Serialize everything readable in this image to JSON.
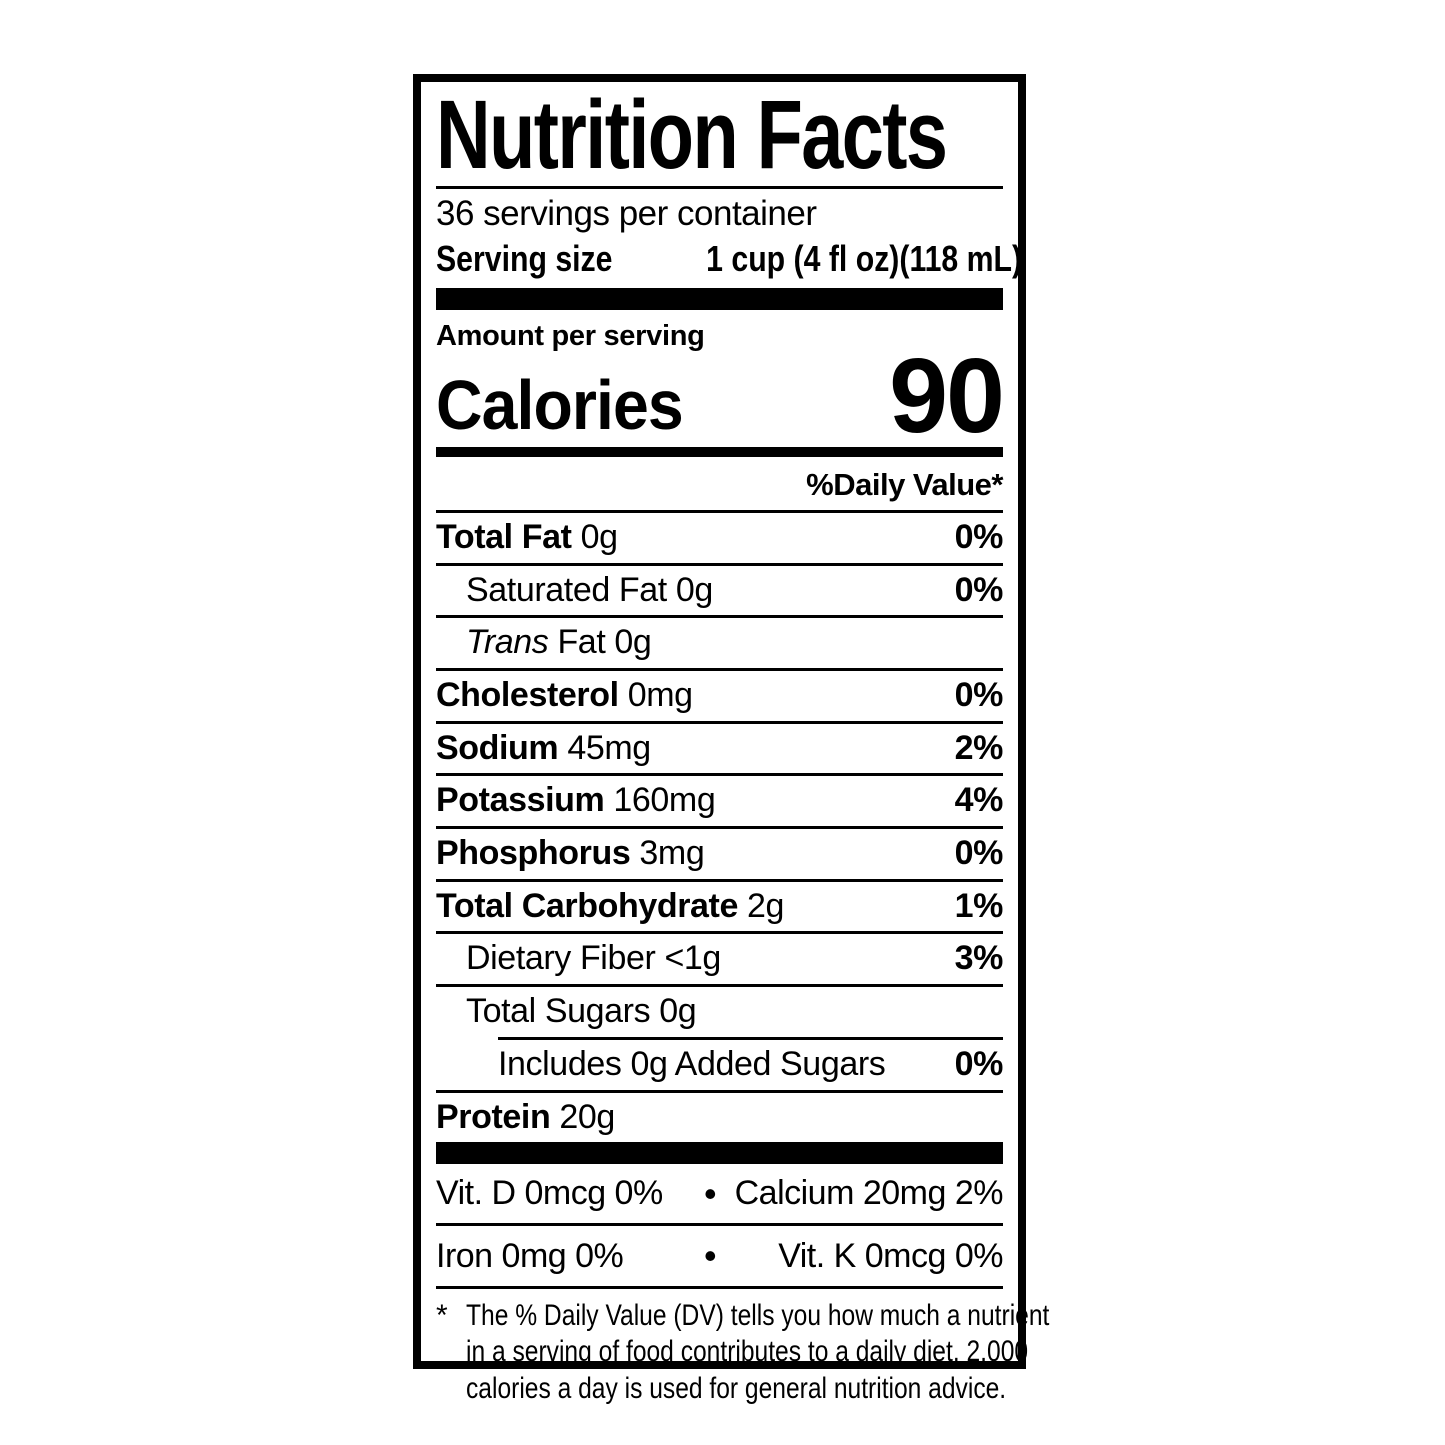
{
  "label": {
    "title": "Nutrition Facts",
    "servings_per_container": "36 servings per container",
    "serving_size_label": "Serving size",
    "serving_size_value": "1 cup (4 fl oz)(118 mL)",
    "amount_per_serving": "Amount per serving",
    "calories_label": "Calories",
    "calories_value": "90",
    "daily_value_header": "%Daily Value*",
    "rows": [
      {
        "name": "Total Fat",
        "amount": "0g",
        "dv": "0%"
      },
      {
        "name": "Saturated Fat",
        "amount": "0g",
        "dv": "0%"
      },
      {
        "name_italic": "Trans",
        "name": "Fat",
        "amount": "0g",
        "dv": ""
      },
      {
        "name": "Cholesterol",
        "amount": "0mg",
        "dv": "0%"
      },
      {
        "name": "Sodium",
        "amount": "45mg",
        "dv": "2%"
      },
      {
        "name": "Potassium",
        "amount": "160mg",
        "dv": "4%"
      },
      {
        "name": "Phosphorus",
        "amount": "3mg",
        "dv": "0%"
      },
      {
        "name": "Total Carbohydrate",
        "amount": "2g",
        "dv": "1%"
      },
      {
        "name": "Dietary Fiber",
        "amount": "<1g",
        "dv": "3%"
      },
      {
        "name": "Total Sugars",
        "amount": "0g",
        "dv": ""
      },
      {
        "name": "Includes 0g Added Sugars",
        "amount": "",
        "dv": "0%"
      },
      {
        "name": "Protein",
        "amount": "20g",
        "dv": ""
      }
    ],
    "micronutrients": [
      {
        "left": "Vit. D 0mcg 0%",
        "bullet": "•",
        "right": "Calcium 20mg 2%"
      },
      {
        "left": "Iron 0mg 0%",
        "bullet": "•",
        "right": "Vit. K 0mcg 0%"
      }
    ],
    "footnote_marker": "*",
    "footnote_lines": [
      "The % Daily Value (DV) tells you how much a nutrient",
      "in a serving of food contributes to a daily diet. 2,000",
      "calories a day is used for general nutrition advice."
    ]
  },
  "colors": {
    "ink": "#000000",
    "background": "#ffffff"
  }
}
